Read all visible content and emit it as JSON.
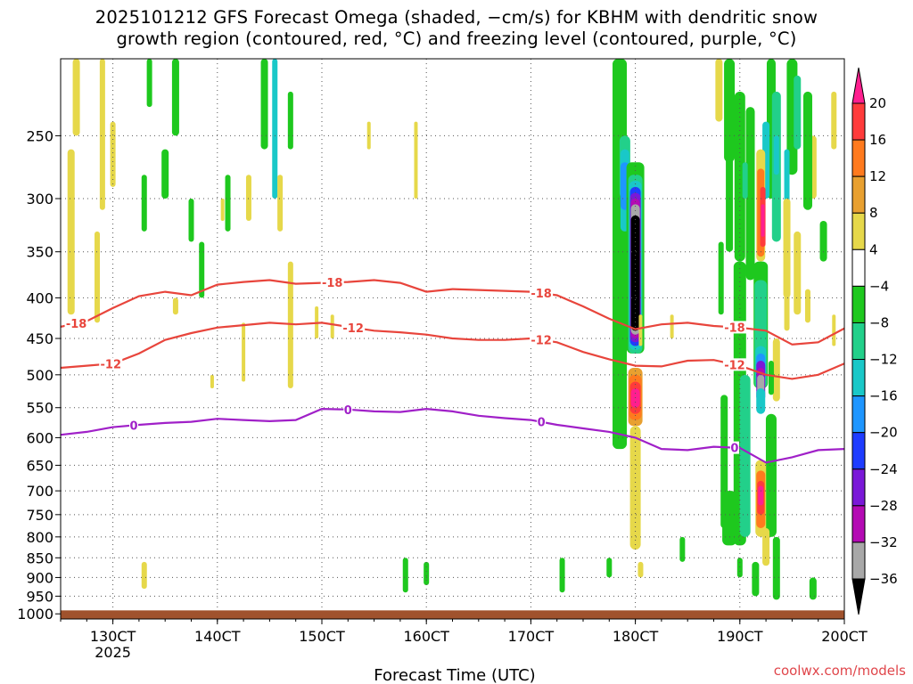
{
  "header": {
    "title_line1": "2025101212 GFS Forecast Omega (shaded, −cm/s) for KBHM with dendritic snow",
    "title_line2": "growth region (contoured, red, °C) and freezing level (contoured, purple, °C)"
  },
  "footer": {
    "credit": "coolwx.com/models"
  },
  "chart_data": {
    "type": "heatmap",
    "xlabel": "Forecast Time (UTC)",
    "x_ticks": [
      {
        "label": "130CT",
        "sub": "2025",
        "day": 13
      },
      {
        "label": "140CT",
        "sub": "",
        "day": 14
      },
      {
        "label": "150CT",
        "sub": "",
        "day": 15
      },
      {
        "label": "160CT",
        "sub": "",
        "day": 16
      },
      {
        "label": "170CT",
        "sub": "",
        "day": 17
      },
      {
        "label": "180CT",
        "sub": "",
        "day": 18
      },
      {
        "label": "190CT",
        "sub": "",
        "day": 19
      },
      {
        "label": "200CT",
        "sub": "",
        "day": 20
      }
    ],
    "xlim_days": [
      12.5,
      20.0
    ],
    "y_ticks": [
      250,
      300,
      350,
      400,
      450,
      500,
      550,
      600,
      650,
      700,
      750,
      800,
      850,
      900,
      950,
      1000
    ],
    "ylim_hpa": [
      200,
      1015
    ],
    "y_scale": "log-pressure",
    "grid": true,
    "colorbar": {
      "labels": [
        "20",
        "16",
        "12",
        "8",
        "4",
        "−4",
        "−8",
        "−12",
        "−16",
        "−20",
        "−24",
        "−28",
        "−32",
        "−36"
      ],
      "colors": [
        "#ff1f8f",
        "#ff3b3b",
        "#ff7a1e",
        "#e8a030",
        "#e6d84a",
        "#ffffff",
        "#1ec81e",
        "#22d08a",
        "#19c8c8",
        "#1e96ff",
        "#1e3cff",
        "#7a18d8",
        "#b40ab4",
        "#a8a8a8",
        "#000000"
      ],
      "bound_values": [
        20,
        16,
        12,
        8,
        4,
        -4,
        -8,
        -12,
        -16,
        -20,
        -24,
        -28,
        -32,
        -36
      ]
    },
    "contour_labels": {
      "dgz_upper": "-18",
      "dgz_lower": "-12",
      "freezing": "0"
    },
    "contour_colors": {
      "dgz": "#e8453c",
      "freezing": "#a020c8"
    },
    "series": [
      {
        "name": "-18",
        "points": [
          [
            12.5,
            435
          ],
          [
            12.75,
            428
          ],
          [
            13.0,
            412
          ],
          [
            13.25,
            398
          ],
          [
            13.5,
            393
          ],
          [
            13.75,
            397
          ],
          [
            14.0,
            385
          ],
          [
            14.25,
            382
          ],
          [
            14.5,
            380
          ],
          [
            14.75,
            384
          ],
          [
            15.0,
            383
          ],
          [
            15.25,
            382
          ],
          [
            15.5,
            380
          ],
          [
            15.75,
            383
          ],
          [
            16.0,
            393
          ],
          [
            16.25,
            390
          ],
          [
            16.5,
            391
          ],
          [
            16.75,
            392
          ],
          [
            17.0,
            393
          ],
          [
            17.25,
            397
          ],
          [
            17.5,
            410
          ],
          [
            17.75,
            425
          ],
          [
            18.0,
            438
          ],
          [
            18.25,
            432
          ],
          [
            18.5,
            430
          ],
          [
            18.75,
            434
          ],
          [
            19.0,
            436
          ],
          [
            19.25,
            440
          ],
          [
            19.5,
            458
          ],
          [
            19.75,
            455
          ],
          [
            20.0,
            437
          ]
        ]
      },
      {
        "name": "-12",
        "points": [
          [
            12.5,
            490
          ],
          [
            12.75,
            487
          ],
          [
            13.0,
            484
          ],
          [
            13.25,
            470
          ],
          [
            13.5,
            452
          ],
          [
            13.75,
            443
          ],
          [
            14.0,
            436
          ],
          [
            14.25,
            433
          ],
          [
            14.5,
            430
          ],
          [
            14.75,
            432
          ],
          [
            15.0,
            430
          ],
          [
            15.25,
            435
          ],
          [
            15.5,
            440
          ],
          [
            15.75,
            442
          ],
          [
            16.0,
            445
          ],
          [
            16.25,
            450
          ],
          [
            16.5,
            452
          ],
          [
            16.75,
            452
          ],
          [
            17.0,
            450
          ],
          [
            17.25,
            455
          ],
          [
            17.5,
            468
          ],
          [
            17.75,
            478
          ],
          [
            18.0,
            487
          ],
          [
            18.25,
            488
          ],
          [
            18.5,
            480
          ],
          [
            18.75,
            479
          ],
          [
            19.0,
            487
          ],
          [
            19.25,
            500
          ],
          [
            19.5,
            506
          ],
          [
            19.75,
            500
          ],
          [
            20.0,
            484
          ]
        ]
      },
      {
        "name": "0",
        "points": [
          [
            12.5,
            595
          ],
          [
            12.75,
            590
          ],
          [
            13.0,
            582
          ],
          [
            13.25,
            578
          ],
          [
            13.5,
            575
          ],
          [
            13.75,
            573
          ],
          [
            14.0,
            568
          ],
          [
            14.25,
            570
          ],
          [
            14.5,
            572
          ],
          [
            14.75,
            570
          ],
          [
            15.0,
            552
          ],
          [
            15.25,
            553
          ],
          [
            15.5,
            556
          ],
          [
            15.75,
            557
          ],
          [
            16.0,
            552
          ],
          [
            16.25,
            556
          ],
          [
            16.5,
            563
          ],
          [
            16.75,
            567
          ],
          [
            17.0,
            570
          ],
          [
            17.25,
            578
          ],
          [
            17.5,
            584
          ],
          [
            17.75,
            590
          ],
          [
            18.0,
            600
          ],
          [
            18.25,
            620
          ],
          [
            18.5,
            622
          ],
          [
            18.75,
            616
          ],
          [
            19.0,
            618
          ],
          [
            19.25,
            645
          ],
          [
            19.5,
            635
          ],
          [
            19.75,
            622
          ],
          [
            20.0,
            620
          ]
        ]
      }
    ]
  }
}
